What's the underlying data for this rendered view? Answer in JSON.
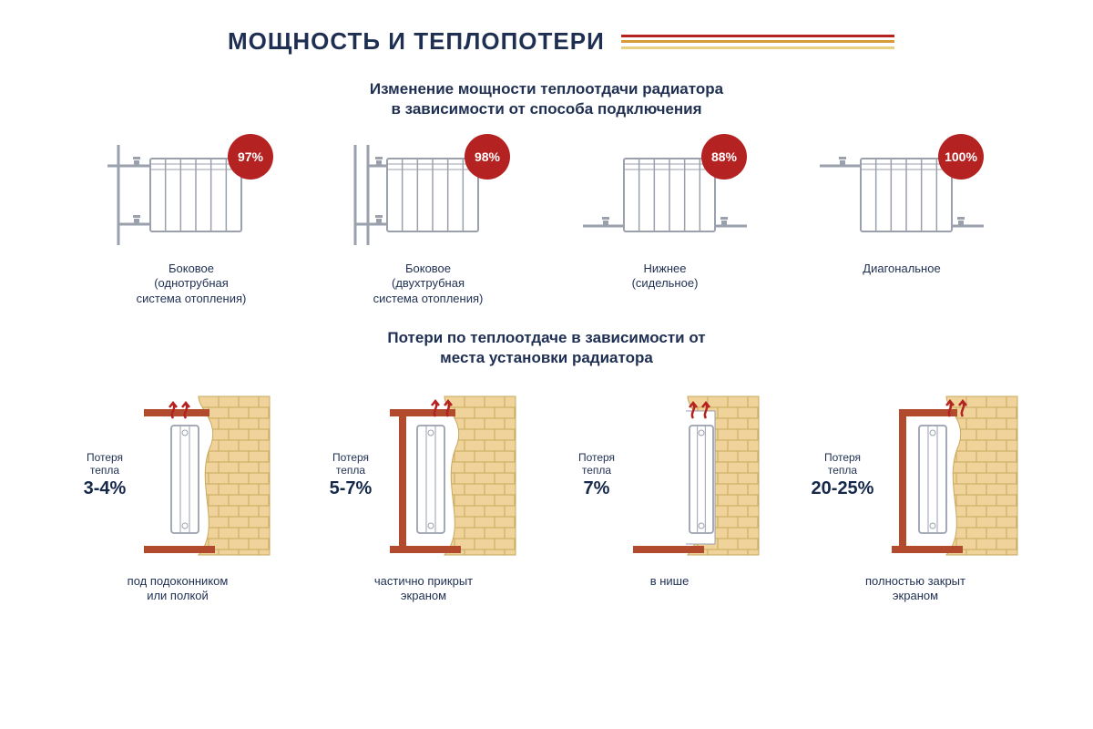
{
  "colors": {
    "navy": "#1f2f52",
    "badge": "#b52222",
    "stripe1": "#b52222",
    "stripe2": "#d69b3a",
    "stripe3": "#e9cf82",
    "radiator_outline": "#9aa1ad",
    "radiator_fill": "#ffffff",
    "brick_fill": "#efd39a",
    "brick_line": "#c9a85d",
    "screen": "#b24a2e",
    "arrow": "#b52222"
  },
  "title": "МОЩНОСТЬ И ТЕПЛОПОТЕРИ",
  "section1": {
    "subtitle": "Изменение мощности теплоотдачи радиатора\nв зависимости от способа подключения",
    "items": [
      {
        "percent": "97%",
        "label": "Боковое\n(однотрубная\nсистема отопления)",
        "connection": "side_single"
      },
      {
        "percent": "98%",
        "label": "Боковое\n(двухтрубная\nсистема отопления)",
        "connection": "side_double"
      },
      {
        "percent": "88%",
        "label": "Нижнее\n(сидельное)",
        "connection": "bottom"
      },
      {
        "percent": "100%",
        "label": "Диагональное",
        "connection": "diagonal"
      }
    ]
  },
  "section2": {
    "subtitle": "Потери по теплоотдаче в зависимости от\nместа установки радиатора",
    "loss_title": "Потеря\nтепла",
    "items": [
      {
        "value": "3-4%",
        "label": "под подоконником\nили полкой",
        "variant": "sill"
      },
      {
        "value": "5-7%",
        "label": "частично прикрыт\nэкраном",
        "variant": "partial_screen"
      },
      {
        "value": "7%",
        "label": "в нише",
        "variant": "niche"
      },
      {
        "value": "20-25%",
        "label": "полностью закрыт\nэкраном",
        "variant": "full_screen"
      }
    ]
  }
}
